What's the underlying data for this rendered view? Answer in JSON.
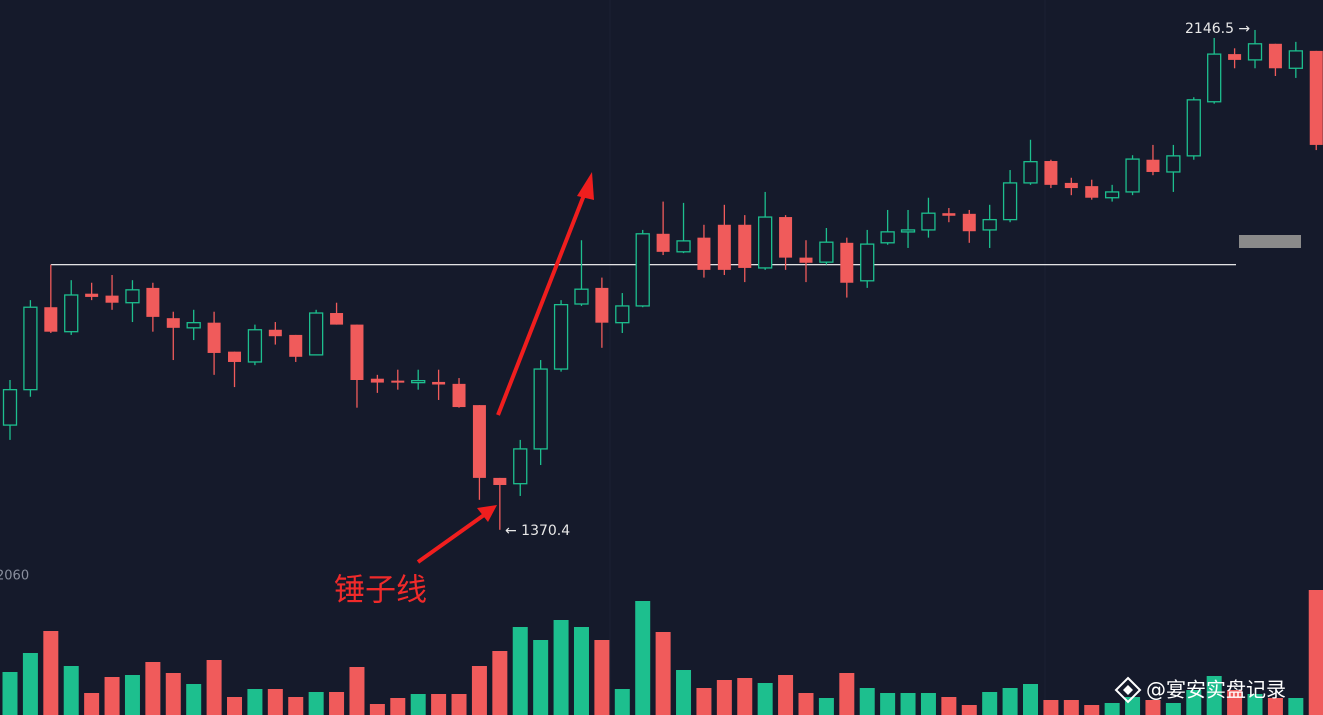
{
  "chart_data": {
    "type": "candlestick",
    "open": [
      1533,
      1588,
      1716,
      1678,
      1737,
      1734,
      1723,
      1746,
      1699,
      1684,
      1692,
      1647,
      1631,
      1681,
      1673,
      1642,
      1707,
      1689,
      1605,
      1602,
      1599,
      1600,
      1597,
      1564,
      1451,
      1442,
      1496,
      1620,
      1721,
      1746,
      1692,
      1718,
      1830,
      1802,
      1824,
      1844,
      1844,
      1777,
      1856,
      1793,
      1786,
      1816,
      1757,
      1816,
      1833,
      1836,
      1862,
      1861,
      1836,
      1852,
      1909,
      1943,
      1909,
      1904,
      1886,
      1895,
      1945,
      1926,
      1951,
      2035,
      2109,
      2100,
      2125,
      2087,
      2114
    ],
    "high": [
      1603,
      1727,
      1782,
      1758,
      1754,
      1766,
      1758,
      1754,
      1709,
      1712,
      1709,
      1647,
      1689,
      1693,
      1673,
      1712,
      1723,
      1689,
      1611,
      1619,
      1619,
      1619,
      1606,
      1564,
      1451,
      1510,
      1634,
      1727,
      1820,
      1762,
      1738,
      1836,
      1880,
      1878,
      1844,
      1875,
      1859,
      1895,
      1859,
      1820,
      1839,
      1824,
      1836,
      1867,
      1867,
      1886,
      1870,
      1867,
      1875,
      1929,
      1976,
      1945,
      1917,
      1914,
      1906,
      1952,
      1968,
      1968,
      2042,
      2134,
      2118,
      2146.5,
      2125,
      2128,
      2114
    ],
    "low": [
      1510,
      1577,
      1676,
      1673,
      1727,
      1712,
      1693,
      1678,
      1634,
      1665,
      1611,
      1592,
      1626,
      1658,
      1631,
      1642,
      1689,
      1560,
      1583,
      1588,
      1588,
      1572,
      1560,
      1417,
      1370.4,
      1423,
      1471,
      1616,
      1718,
      1653,
      1676,
      1716,
      1797,
      1800,
      1762,
      1766,
      1755,
      1774,
      1774,
      1755,
      1782,
      1731,
      1746,
      1813,
      1808,
      1824,
      1848,
      1816,
      1808,
      1848,
      1906,
      1901,
      1890,
      1883,
      1880,
      1890,
      1921,
      1895,
      1945,
      2032,
      2087,
      2087,
      2075,
      2072,
      1960
    ],
    "close": [
      1588,
      1716,
      1678,
      1735,
      1732,
      1723,
      1743,
      1701,
      1684,
      1692,
      1645,
      1631,
      1681,
      1671,
      1639,
      1707,
      1689,
      1603,
      1599,
      1599,
      1602,
      1596,
      1561,
      1451,
      1440,
      1496,
      1620,
      1720,
      1744,
      1692,
      1718,
      1830,
      1802,
      1819,
      1774,
      1774,
      1777,
      1856,
      1793,
      1785,
      1817,
      1754,
      1814,
      1833,
      1836,
      1862,
      1858,
      1834,
      1852,
      1909,
      1942,
      1906,
      1901,
      1886,
      1895,
      1946,
      1926,
      1951,
      2038,
      2109,
      2100,
      2125,
      2087,
      2114,
      1968
    ],
    "volume": [
      43,
      62,
      84,
      49,
      22,
      38,
      40,
      53,
      42,
      31,
      55,
      18,
      26,
      26,
      18,
      23,
      23,
      48,
      11,
      17,
      21,
      21,
      21,
      49,
      64,
      88,
      75,
      95,
      88,
      75,
      26,
      114,
      83,
      45,
      27,
      35,
      37,
      32,
      40,
      22,
      17,
      42,
      27,
      22,
      22,
      22,
      18,
      10,
      23,
      27,
      31,
      15,
      15,
      10,
      12,
      18,
      15,
      12,
      25,
      39,
      25,
      21,
      17,
      17,
      125
    ],
    "ylim": [
      1308,
      2193
    ],
    "volume_ylim": [
      0,
      125
    ],
    "up_color": "#1dbf8e",
    "down_color": "#f05b5b",
    "hline": 1782,
    "annotations": {
      "high": "2146.5 →",
      "low": "← 1370.4",
      "pattern": "锤子线",
      "axis_label": "2060"
    }
  },
  "watermark": "@宴安实盘记录"
}
